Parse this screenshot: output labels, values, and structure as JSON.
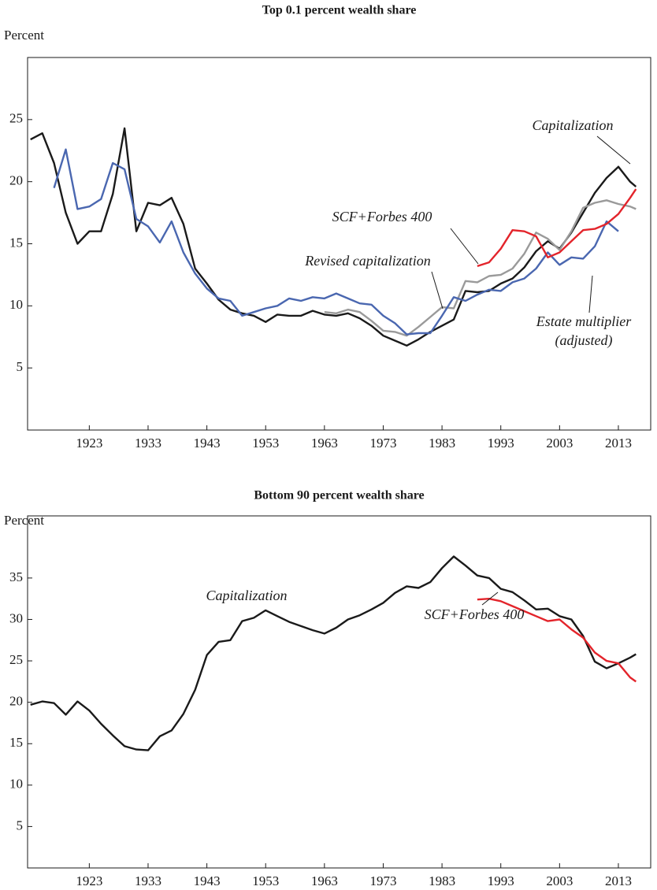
{
  "chart_data": [
    {
      "type": "line",
      "title": "Top 0.1 percent wealth share",
      "ylabel": "Percent",
      "x": [
        1913,
        1915,
        1917,
        1919,
        1921,
        1923,
        1925,
        1927,
        1929,
        1931,
        1933,
        1935,
        1937,
        1939,
        1941,
        1943,
        1945,
        1947,
        1949,
        1951,
        1953,
        1955,
        1957,
        1959,
        1961,
        1963,
        1965,
        1967,
        1969,
        1971,
        1973,
        1975,
        1977,
        1979,
        1981,
        1983,
        1985,
        1987,
        1989,
        1991,
        1993,
        1995,
        1997,
        1999,
        2001,
        2003,
        2005,
        2007,
        2009,
        2011,
        2013,
        2015,
        2016
      ],
      "xlim": [
        1912.5,
        2018.5
      ],
      "xticks": [
        1923,
        1933,
        1943,
        1953,
        1963,
        1973,
        1983,
        1993,
        2003,
        2013
      ],
      "ylim": [
        0,
        30
      ],
      "yticks": [
        5,
        10,
        15,
        20,
        25
      ],
      "series": [
        {
          "name": "Capitalization",
          "color": "#1a1a1a",
          "values": [
            23.4,
            23.9,
            21.5,
            17.5,
            15,
            16,
            16,
            19,
            24.3,
            16,
            18.3,
            18.1,
            18.7,
            16.6,
            13,
            11.8,
            10.5,
            9.7,
            9.4,
            9.2,
            8.7,
            9.3,
            9.2,
            9.2,
            9.6,
            9.3,
            9.2,
            9.4,
            9.0,
            8.4,
            7.6,
            7.2,
            6.8,
            7.3,
            7.9,
            8.4,
            8.9,
            11.2,
            11.1,
            11.2,
            11.8,
            12.2,
            13.1,
            14.4,
            15.2,
            14.6,
            15.9,
            17.5,
            19.1,
            20.3,
            21.2,
            20.0,
            19.6
          ]
        },
        {
          "name": "Revised capitalization",
          "color": "#9a9a9a",
          "values": [
            null,
            null,
            null,
            null,
            null,
            null,
            null,
            null,
            null,
            null,
            null,
            null,
            null,
            null,
            null,
            null,
            null,
            null,
            null,
            null,
            null,
            null,
            null,
            null,
            null,
            9.5,
            9.4,
            9.7,
            9.5,
            8.8,
            8.0,
            7.9,
            7.6,
            8.3,
            9.1,
            9.9,
            9.8,
            12.0,
            11.9,
            12.4,
            12.5,
            13.0,
            14.2,
            15.9,
            15.4,
            14.5,
            16.0,
            17.9,
            18.3,
            18.5,
            18.2,
            18.0,
            17.8
          ]
        },
        {
          "name": "Estate multiplier (adjusted)",
          "color": "#4a67b0",
          "values": [
            null,
            null,
            19.5,
            22.6,
            17.8,
            18.0,
            18.6,
            21.5,
            21.0,
            17.0,
            16.4,
            15.1,
            16.8,
            14.3,
            12.6,
            11.4,
            10.6,
            10.4,
            9.2,
            9.5,
            9.8,
            10.0,
            10.6,
            10.4,
            10.7,
            10.6,
            11.0,
            10.6,
            10.2,
            10.1,
            9.2,
            8.6,
            7.7,
            7.8,
            7.8,
            9.2,
            10.7,
            10.4,
            10.9,
            11.3,
            11.2,
            11.9,
            12.2,
            13.0,
            14.3,
            13.3,
            13.9,
            13.8,
            14.8,
            16.8,
            16.0,
            null,
            null
          ]
        },
        {
          "name": "SCF+Forbes 400",
          "color": "#e3242b",
          "values": [
            null,
            null,
            null,
            null,
            null,
            null,
            null,
            null,
            null,
            null,
            null,
            null,
            null,
            null,
            null,
            null,
            null,
            null,
            null,
            null,
            null,
            null,
            null,
            null,
            null,
            null,
            null,
            null,
            null,
            null,
            null,
            null,
            null,
            null,
            null,
            null,
            null,
            null,
            13.2,
            13.5,
            14.6,
            16.1,
            16.0,
            15.6,
            13.9,
            14.3,
            15.2,
            16.1,
            16.2,
            16.6,
            17.4,
            18.7,
            19.4
          ]
        }
      ],
      "annotations": [
        "Capitalization",
        "SCF+Forbes 400",
        "Revised capitalization",
        "Estate multiplier",
        "(adjusted)"
      ]
    },
    {
      "type": "line",
      "title": "Bottom 90 percent wealth share",
      "ylabel": "Percent",
      "x": [
        1913,
        1915,
        1917,
        1919,
        1921,
        1923,
        1925,
        1927,
        1929,
        1931,
        1933,
        1935,
        1937,
        1939,
        1941,
        1943,
        1945,
        1947,
        1949,
        1951,
        1953,
        1955,
        1957,
        1959,
        1961,
        1963,
        1965,
        1967,
        1969,
        1971,
        1973,
        1975,
        1977,
        1979,
        1981,
        1983,
        1985,
        1987,
        1989,
        1991,
        1993,
        1995,
        1997,
        1999,
        2001,
        2003,
        2005,
        2007,
        2009,
        2011,
        2013,
        2015,
        2016
      ],
      "xlim": [
        1912.5,
        2018.5
      ],
      "xticks": [
        1923,
        1933,
        1943,
        1953,
        1963,
        1973,
        1983,
        1993,
        2003,
        2013
      ],
      "ylim": [
        0,
        42.5
      ],
      "yticks": [
        5,
        10,
        15,
        20,
        25,
        30,
        35
      ],
      "series": [
        {
          "name": "Capitalization",
          "color": "#1a1a1a",
          "values": [
            19.7,
            20.1,
            19.9,
            18.5,
            20.1,
            19.0,
            17.4,
            16.0,
            14.7,
            14.3,
            14.2,
            15.9,
            16.6,
            18.6,
            21.5,
            25.7,
            27.3,
            27.5,
            29.8,
            30.2,
            31.1,
            30.4,
            29.7,
            29.2,
            28.7,
            28.3,
            29.0,
            30.0,
            30.5,
            31.2,
            32.0,
            33.2,
            34.0,
            33.8,
            34.5,
            36.2,
            37.6,
            36.5,
            35.3,
            35.0,
            33.7,
            33.3,
            32.3,
            31.2,
            31.3,
            30.4,
            30.0,
            28.0,
            24.9,
            24.1,
            24.7,
            25.4,
            25.8
          ]
        },
        {
          "name": "SCF+Forbes 400",
          "color": "#e3242b",
          "values": [
            null,
            null,
            null,
            null,
            null,
            null,
            null,
            null,
            null,
            null,
            null,
            null,
            null,
            null,
            null,
            null,
            null,
            null,
            null,
            null,
            null,
            null,
            null,
            null,
            null,
            null,
            null,
            null,
            null,
            null,
            null,
            null,
            null,
            null,
            null,
            null,
            null,
            null,
            32.4,
            32.5,
            32.2,
            31.6,
            31.0,
            30.4,
            29.8,
            30.0,
            28.8,
            27.8,
            26.0,
            25.0,
            24.7,
            23.0,
            22.5
          ]
        }
      ],
      "annotations": [
        "Capitalization",
        "SCF+Forbes 400"
      ]
    }
  ]
}
